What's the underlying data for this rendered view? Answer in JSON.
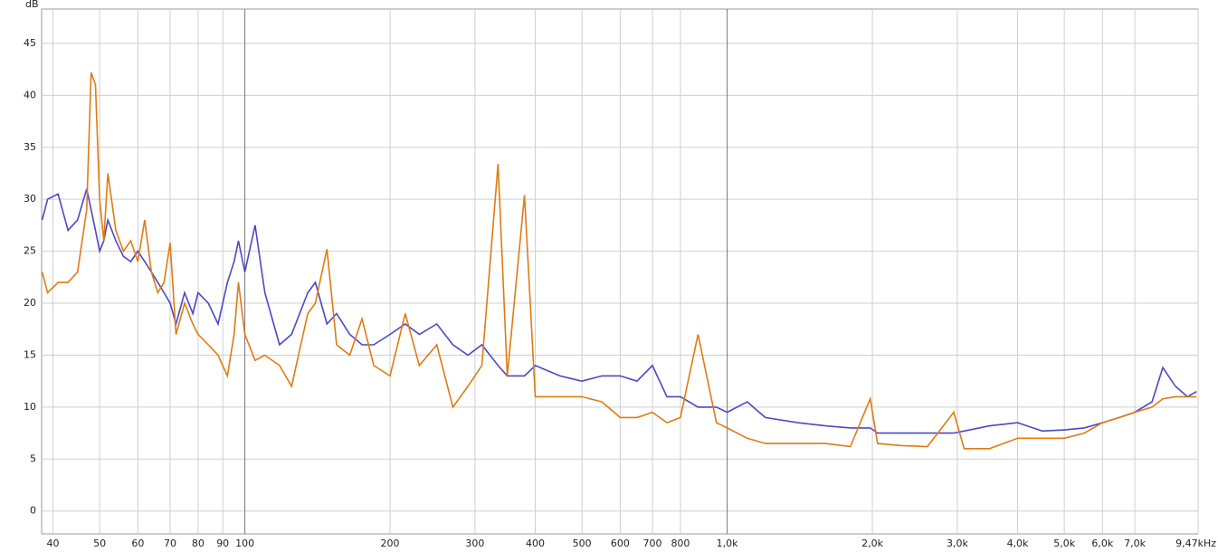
{
  "chart_data": {
    "type": "line",
    "y_label": "dB",
    "log_x": true,
    "grid": true,
    "xlim": [
      37.9,
      9470
    ],
    "ylim": [
      -2.2,
      48.3
    ],
    "xticks": [
      40,
      50,
      60,
      70,
      80,
      90,
      100,
      200,
      300,
      400,
      500,
      600,
      700,
      800,
      {
        "value": 1000,
        "label": "1,0k"
      },
      {
        "value": 2000,
        "label": "2,0k"
      },
      {
        "value": 3000,
        "label": "3,0k"
      },
      {
        "value": 4000,
        "label": "4,0k"
      },
      {
        "value": 5000,
        "label": "5,0k"
      },
      {
        "value": 6000,
        "label": "6,0k"
      },
      {
        "value": 7000,
        "label": "7,0k"
      },
      {
        "value": 9470,
        "label": "9,47kHz"
      }
    ],
    "yticks": [
      0,
      5,
      10,
      15,
      20,
      25,
      30,
      35,
      40,
      45
    ],
    "x": [
      38,
      39,
      41,
      43,
      45,
      47,
      48,
      49,
      50,
      51,
      52,
      54,
      56,
      58,
      60,
      62,
      64,
      66,
      68,
      70,
      72,
      75,
      78,
      80,
      84,
      88,
      92,
      95,
      97,
      100,
      105,
      110,
      118,
      125,
      135,
      140,
      148,
      155,
      165,
      175,
      185,
      200,
      215,
      230,
      250,
      270,
      290,
      310,
      335,
      350,
      380,
      400,
      450,
      500,
      550,
      600,
      650,
      700,
      750,
      800,
      870,
      950,
      1000,
      1100,
      1200,
      1400,
      1600,
      1800,
      1980,
      2050,
      2300,
      2600,
      2950,
      3100,
      3500,
      4000,
      4500,
      5000,
      5500,
      6000,
      6500,
      7000,
      7600,
      8000,
      8500,
      9000,
      9400
    ],
    "series": [
      {
        "color": "#4a48c8",
        "values": [
          28,
          30,
          30.5,
          27,
          28,
          31,
          29,
          27,
          25,
          26,
          28,
          26,
          24.5,
          24,
          25,
          24,
          23,
          22,
          21,
          20,
          18,
          21,
          19,
          21,
          20,
          18,
          22,
          24,
          26,
          23,
          27.5,
          21,
          16,
          17,
          21,
          22,
          18,
          19,
          17,
          16,
          16,
          17,
          18,
          17,
          18,
          16,
          15,
          16,
          14,
          13,
          13,
          14,
          13,
          12.5,
          13,
          13,
          12.5,
          14,
          11,
          11,
          10,
          10,
          9.5,
          10.5,
          9,
          8.5,
          8.2,
          8,
          8,
          7.5,
          7.5,
          7.5,
          7.5,
          7.7,
          8.2,
          8.5,
          7.7,
          7.8,
          8,
          8.5,
          9,
          9.5,
          10.5,
          13.8,
          12,
          11,
          11.5
        ]
      },
      {
        "color": "#e07b12",
        "values": [
          23,
          21,
          22,
          22,
          23,
          29,
          42.2,
          41,
          30,
          26,
          32.5,
          27,
          25,
          26,
          24,
          28,
          23,
          21,
          22,
          25.8,
          17,
          20,
          18,
          17,
          16,
          15,
          13,
          17,
          22,
          17,
          14.5,
          15,
          14,
          12,
          19,
          20,
          25.2,
          16,
          15,
          18.5,
          14,
          13,
          19,
          14,
          16,
          10,
          12,
          14,
          33.4,
          13,
          30.4,
          11,
          11,
          11,
          10.5,
          9,
          9,
          9.5,
          8.5,
          9,
          17,
          8.5,
          8,
          7,
          6.5,
          6.5,
          6.5,
          6.2,
          10.8,
          6.5,
          6.3,
          6.2,
          9.5,
          6,
          6,
          7,
          7,
          7,
          7.5,
          8.5,
          9,
          9.5,
          10,
          10.8,
          11,
          11,
          11
        ]
      }
    ]
  }
}
